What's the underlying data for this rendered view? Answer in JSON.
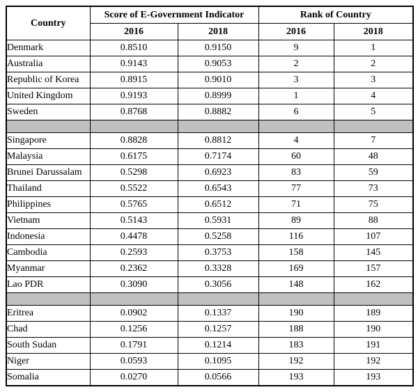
{
  "table": {
    "headers": {
      "country": "Country",
      "score_group": "Score of E-Government Indicator",
      "rank_group": "Rank of Country",
      "score_2016": "2016",
      "score_2018": "2018",
      "rank_2016": "2016",
      "rank_2018": "2018"
    },
    "groups": [
      {
        "rows": [
          {
            "country": "Denmark",
            "score_2016": "0.8510",
            "score_2018": "0.9150",
            "rank_2016": "9",
            "rank_2018": "1"
          },
          {
            "country": "Australia",
            "score_2016": "0.9143",
            "score_2018": "0.9053",
            "rank_2016": "2",
            "rank_2018": "2"
          },
          {
            "country": "Republic of Korea",
            "score_2016": "0.8915",
            "score_2018": "0.9010",
            "rank_2016": "3",
            "rank_2018": "3"
          },
          {
            "country": "United Kingdom",
            "score_2016": "0.9193",
            "score_2018": "0.8999",
            "rank_2016": "1",
            "rank_2018": "4"
          },
          {
            "country": "Sweden",
            "score_2016": "0.8768",
            "score_2018": "0.8882",
            "rank_2016": "6",
            "rank_2018": "5"
          }
        ]
      },
      {
        "rows": [
          {
            "country": "Singapore",
            "score_2016": "0.8828",
            "score_2018": "0.8812",
            "rank_2016": "4",
            "rank_2018": "7"
          },
          {
            "country": "Malaysia",
            "score_2016": "0.6175",
            "score_2018": "0.7174",
            "rank_2016": "60",
            "rank_2018": "48"
          },
          {
            "country": "Brunei Darussalam",
            "score_2016": "0.5298",
            "score_2018": "0.6923",
            "rank_2016": "83",
            "rank_2018": "59"
          },
          {
            "country": "Thailand",
            "score_2016": "0.5522",
            "score_2018": "0.6543",
            "rank_2016": "77",
            "rank_2018": "73"
          },
          {
            "country": "Philippines",
            "score_2016": "0.5765",
            "score_2018": "0.6512",
            "rank_2016": "71",
            "rank_2018": "75"
          },
          {
            "country": "Vietnam",
            "score_2016": "0.5143",
            "score_2018": "0.5931",
            "rank_2016": "89",
            "rank_2018": "88"
          },
          {
            "country": "Indonesia",
            "score_2016": "0.4478",
            "score_2018": "0.5258",
            "rank_2016": "116",
            "rank_2018": "107"
          },
          {
            "country": "Cambodia",
            "score_2016": "0.2593",
            "score_2018": "0.3753",
            "rank_2016": "158",
            "rank_2018": "145"
          },
          {
            "country": "Myanmar",
            "score_2016": "0.2362",
            "score_2018": "0.3328",
            "rank_2016": "169",
            "rank_2018": "157"
          },
          {
            "country": "Lao PDR",
            "score_2016": "0.3090",
            "score_2018": "0.3056",
            "rank_2016": "148",
            "rank_2018": "162"
          }
        ]
      },
      {
        "rows": [
          {
            "country": "Eritrea",
            "score_2016": "0.0902",
            "score_2018": "0.1337",
            "rank_2016": "190",
            "rank_2018": "189"
          },
          {
            "country": "Chad",
            "score_2016": "0.1256",
            "score_2018": "0.1257",
            "rank_2016": "188",
            "rank_2018": "190"
          },
          {
            "country": "South Sudan",
            "score_2016": "0.1791",
            "score_2018": "0.1214",
            "rank_2016": "183",
            "rank_2018": "191"
          },
          {
            "country": "Niger",
            "score_2016": "0.0593",
            "score_2018": "0.1095",
            "rank_2016": "192",
            "rank_2018": "192"
          },
          {
            "country": "Somalia",
            "score_2016": "0.0270",
            "score_2018": "0.0566",
            "rank_2016": "193",
            "rank_2018": "193"
          }
        ]
      }
    ]
  },
  "colors": {
    "border": "#000000",
    "separator_bg": "#c0c0c0",
    "background": "#ffffff",
    "text": "#000000"
  }
}
